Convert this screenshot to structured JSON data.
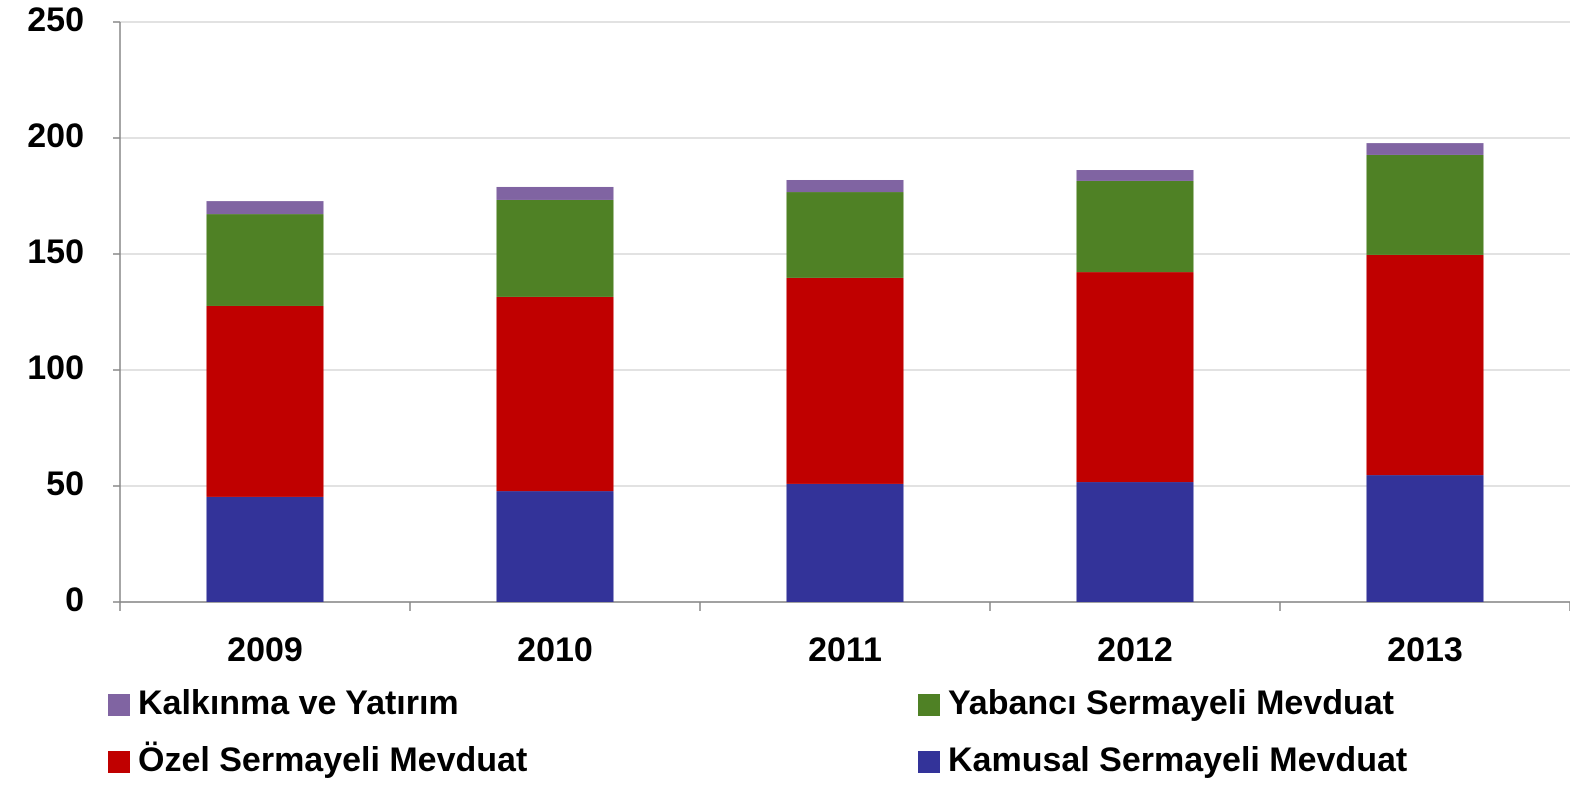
{
  "chart_data": {
    "type": "stacked_bar",
    "categories": [
      "2009",
      "2010",
      "2011",
      "2012",
      "2013"
    ],
    "series": [
      {
        "name": "Kamusal Sermayeli Mevduat",
        "color": "#333399",
        "values": [
          45.3,
          47.8,
          50.9,
          51.7,
          54.7
        ]
      },
      {
        "name": "Özel Sermayeli Mevduat",
        "color": "#c00000",
        "values": [
          82.3,
          83.7,
          88.8,
          90.5,
          94.9
        ]
      },
      {
        "name": "Yabancı Sermayeli Mevduat",
        "color": "#4f8125",
        "values": [
          39.6,
          41.8,
          37.0,
          39.3,
          43.1
        ]
      },
      {
        "name": "Kalkınma ve Yatırım",
        "color": "#8064a2",
        "values": [
          5.6,
          5.6,
          5.2,
          4.7,
          5.1
        ]
      }
    ],
    "ylim": [
      0,
      250
    ],
    "yticks": [
      0,
      50,
      100,
      150,
      200,
      250
    ],
    "grid": true
  }
}
